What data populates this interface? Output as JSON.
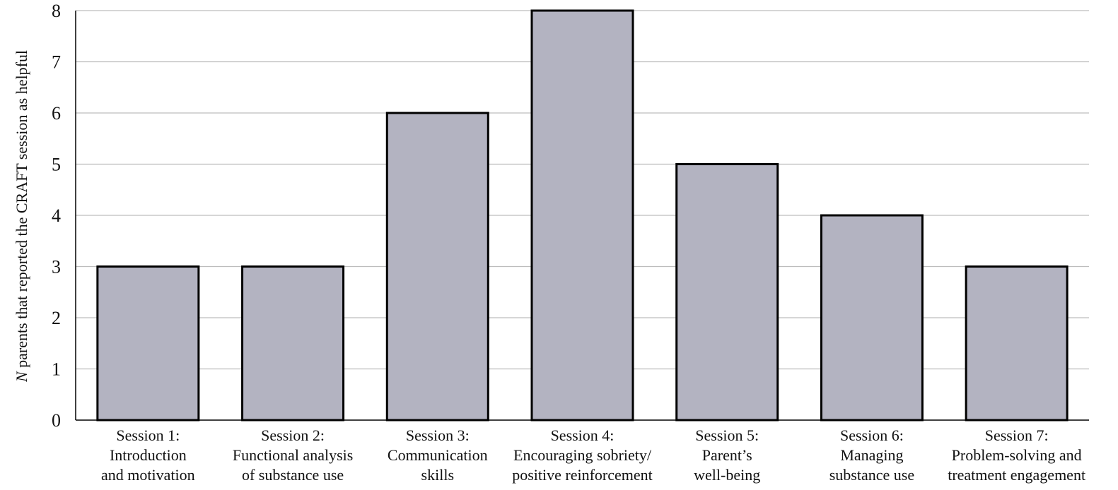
{
  "chart_data": {
    "type": "bar",
    "categories": [
      [
        "Session 1:",
        "Introduction",
        "and motivation"
      ],
      [
        "Session 2:",
        "Functional analysis",
        "of substance use"
      ],
      [
        "Session 3:",
        "Communication",
        "skills"
      ],
      [
        "Session 4:",
        "Encouraging sobriety/",
        "positive reinforcement"
      ],
      [
        "Session 5:",
        "Parent’s",
        "well-being"
      ],
      [
        "Session 6:",
        "Managing",
        "substance use"
      ],
      [
        "Session 7:",
        "Problem-solving and",
        "treatment engagement"
      ]
    ],
    "values": [
      3,
      3,
      6,
      8,
      5,
      4,
      3
    ],
    "title": "",
    "xlabel": "",
    "ylabel_italic": "N",
    "ylabel_rest": " parents that reported the CRAFT session as helpful",
    "ylim": [
      0,
      8
    ],
    "yticks": [
      0,
      1,
      2,
      3,
      4,
      5,
      6,
      7,
      8
    ],
    "grid": true,
    "colors": {
      "bar_fill": "#b3b3c1",
      "bar_stroke": "#000000",
      "grid": "#bdbdbd",
      "axis": "#000000"
    }
  }
}
